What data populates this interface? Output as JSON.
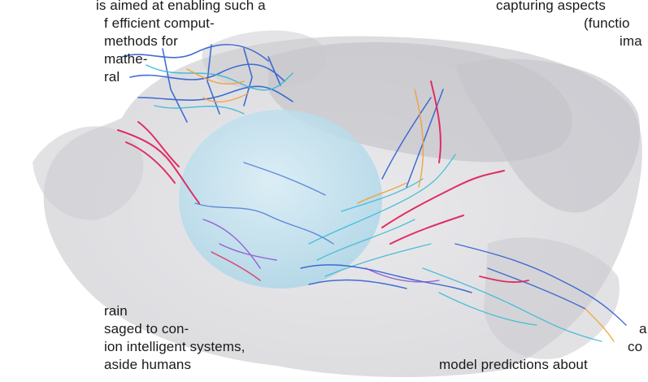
{
  "text_fragments": {
    "top_left": [
      "is aimed at enabling such a",
      "f efficient comput-",
      "methods for",
      "mathe-",
      "ral"
    ],
    "top_right": [
      "capturing aspects",
      "(functio",
      "ima"
    ],
    "bottom_left": [
      "rain",
      "saged to con-",
      "ion intelligent systems,",
      "aside humans"
    ],
    "bottom_right": [
      "a",
      "co",
      "model predictions about"
    ]
  },
  "figure": {
    "description_icon": "brain-neuron-reconstruction-image",
    "colors": {
      "brain_shell": "#cfcfd3",
      "brain_shell_dark": "#b9b9bf",
      "striatum": "#bfe3f1",
      "neuron_blue": "#2f5fd0",
      "neuron_cyan": "#34b7d8",
      "neuron_red": "#e0245e",
      "neuron_orange": "#f0a23a",
      "neuron_purple": "#8a4bd0"
    }
  }
}
